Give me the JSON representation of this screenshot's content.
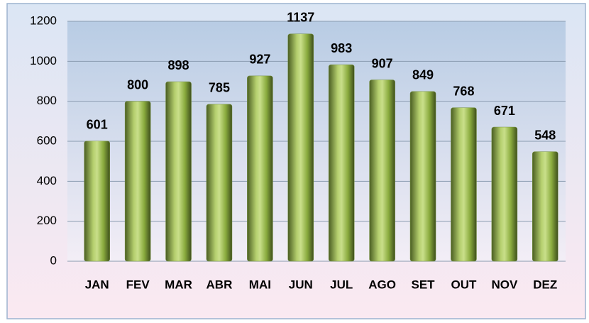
{
  "chart_data": {
    "type": "bar",
    "categories": [
      "JAN",
      "FEV",
      "MAR",
      "ABR",
      "MAI",
      "JUN",
      "JUL",
      "AGO",
      "SET",
      "OUT",
      "NOV",
      "DEZ"
    ],
    "values": [
      601,
      800,
      898,
      785,
      927,
      1137,
      983,
      907,
      849,
      768,
      671,
      548
    ],
    "color": "#76923c",
    "ylim": [
      0,
      1200
    ],
    "yticks": [
      0,
      200,
      400,
      600,
      800,
      1000,
      1200
    ],
    "grid": true
  }
}
